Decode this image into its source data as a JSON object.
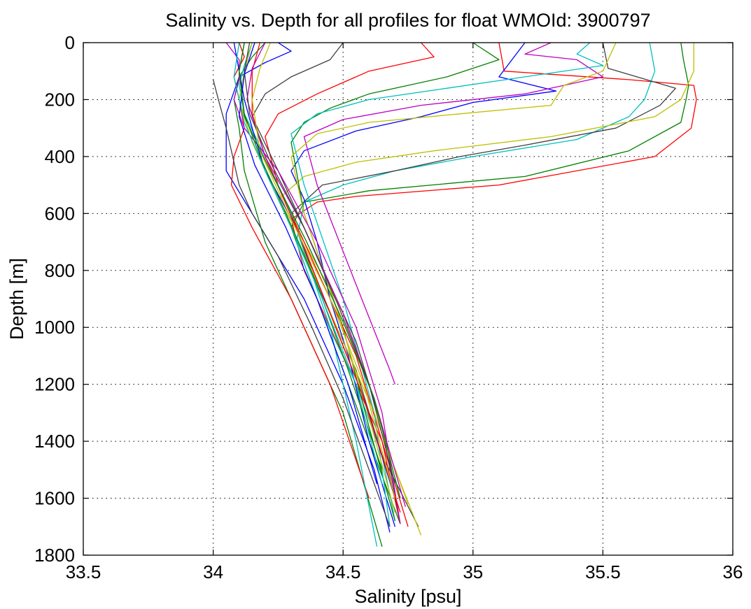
{
  "chart_data": {
    "type": "line",
    "title": "Salinity vs. Depth for all profiles for float WMOId: 3900797",
    "xlabel": "Salinity [psu]",
    "ylabel": "Depth [m]",
    "xlim": [
      33.5,
      36
    ],
    "ylim": [
      0,
      1800
    ],
    "y_reversed": true,
    "grid": true,
    "x_ticks": [
      "33.5",
      "34",
      "34.5",
      "35",
      "35.5",
      "36"
    ],
    "y_ticks": [
      "0",
      "200",
      "400",
      "600",
      "800",
      "1000",
      "1200",
      "1400",
      "1600",
      "1800"
    ],
    "colors": [
      "#0000ff",
      "#008000",
      "#ff0000",
      "#00bfbf",
      "#bf00bf",
      "#bfbf00",
      "#404040"
    ],
    "series": [
      {
        "color": "#ff0000",
        "x": [
          35.1,
          35.12,
          35.6,
          35.85,
          35.86,
          35.84,
          35.7,
          35.1,
          34.55,
          34.4,
          34.3,
          34.35,
          34.45,
          34.55,
          34.65,
          34.75
        ],
        "y": [
          0,
          100,
          130,
          150,
          200,
          300,
          400,
          500,
          540,
          560,
          620,
          800,
          1000,
          1200,
          1400,
          1700
        ]
      },
      {
        "color": "#008000",
        "x": [
          35.8,
          35.81,
          35.83,
          35.82,
          35.8,
          35.6,
          35.2,
          34.6,
          34.35,
          34.3,
          34.4,
          34.5,
          34.6,
          34.72
        ],
        "y": [
          0,
          60,
          150,
          200,
          280,
          380,
          470,
          520,
          560,
          650,
          900,
          1150,
          1400,
          1690
        ]
      },
      {
        "color": "#00bfbf",
        "x": [
          35.68,
          35.7,
          35.66,
          35.6,
          35.4,
          35.0,
          34.7,
          34.5,
          34.35,
          34.32,
          34.42,
          34.55,
          34.65,
          34.7
        ],
        "y": [
          0,
          100,
          200,
          260,
          340,
          400,
          450,
          500,
          560,
          700,
          950,
          1200,
          1450,
          1680
        ]
      },
      {
        "color": "#404040",
        "x": [
          35.5,
          35.52,
          35.78,
          35.72,
          35.55,
          35.2,
          34.95,
          34.7,
          34.42,
          34.3,
          34.4,
          34.55,
          34.65,
          34.79
        ],
        "y": [
          0,
          90,
          160,
          220,
          300,
          360,
          400,
          450,
          500,
          600,
          850,
          1150,
          1450,
          1700
        ]
      },
      {
        "color": "#bfbf00",
        "x": [
          35.85,
          35.85,
          35.8,
          35.7,
          35.3,
          34.85,
          34.55,
          34.35,
          34.25,
          34.35,
          34.5,
          34.6,
          34.68,
          34.8
        ],
        "y": [
          0,
          100,
          200,
          260,
          330,
          380,
          420,
          470,
          550,
          700,
          950,
          1200,
          1450,
          1730
        ]
      },
      {
        "color": "#0000ff",
        "x": [
          35.2,
          35.1,
          35.32,
          35.0,
          34.8,
          34.55,
          34.35,
          34.3,
          34.35,
          34.4,
          34.45,
          34.52,
          34.6,
          34.7
        ],
        "y": [
          0,
          120,
          170,
          210,
          260,
          310,
          380,
          450,
          550,
          700,
          900,
          1100,
          1400,
          1700
        ]
      },
      {
        "color": "#bf00bf",
        "x": [
          35.3,
          35.2,
          35.4,
          35.5,
          35.2,
          34.8,
          34.5,
          34.35,
          34.4,
          34.55,
          34.68,
          34.7
        ],
        "y": [
          0,
          40,
          60,
          120,
          180,
          220,
          270,
          330,
          500,
          850,
          1150,
          1200
        ]
      },
      {
        "color": "#008000",
        "x": [
          35.0,
          35.1,
          34.9,
          34.6,
          34.45,
          34.35,
          34.3,
          34.35,
          34.5,
          34.6,
          34.7
        ],
        "y": [
          0,
          60,
          120,
          180,
          230,
          280,
          350,
          600,
          1000,
          1350,
          1680
        ]
      },
      {
        "color": "#ff0000",
        "x": [
          34.8,
          34.85,
          34.6,
          34.4,
          34.25,
          34.2,
          34.25,
          34.4,
          34.55,
          34.65,
          34.72
        ],
        "y": [
          0,
          50,
          100,
          180,
          250,
          330,
          500,
          800,
          1100,
          1400,
          1690
        ]
      },
      {
        "color": "#00bfbf",
        "x": [
          35.45,
          35.4,
          35.5,
          35.2,
          34.9,
          34.6,
          34.4,
          34.3,
          34.35,
          34.5,
          34.62,
          34.68
        ],
        "y": [
          0,
          40,
          80,
          120,
          160,
          200,
          250,
          320,
          500,
          900,
          1300,
          1700
        ]
      },
      {
        "color": "#404040",
        "x": [
          34.5,
          34.45,
          34.3,
          34.2,
          34.15,
          34.25,
          34.4,
          34.55,
          34.65,
          34.72
        ],
        "y": [
          0,
          60,
          120,
          180,
          260,
          450,
          750,
          1050,
          1350,
          1690
        ]
      },
      {
        "color": "#bfbf00",
        "x": [
          35.55,
          35.5,
          35.35,
          35.3,
          34.95,
          34.6,
          34.4,
          34.3,
          34.35,
          34.48,
          34.58,
          34.7
        ],
        "y": [
          0,
          100,
          150,
          220,
          250,
          280,
          320,
          400,
          600,
          950,
          1250,
          1650
        ]
      },
      {
        "color": "#0000ff",
        "x": [
          34.25,
          34.3,
          34.2,
          34.1,
          34.05,
          34.05,
          34.15,
          34.35,
          34.5,
          34.62,
          34.68
        ],
        "y": [
          0,
          30,
          70,
          120,
          250,
          450,
          600,
          900,
          1200,
          1500,
          1720
        ]
      },
      {
        "color": "#008000",
        "x": [
          34.2,
          34.15,
          34.1,
          34.08,
          34.1,
          34.12,
          34.2,
          34.35,
          34.5,
          34.65
        ],
        "y": [
          0,
          50,
          120,
          200,
          300,
          450,
          700,
          1000,
          1300,
          1770
        ]
      },
      {
        "color": "#ff0000",
        "x": [
          34.1,
          34.12,
          34.08,
          34.1,
          34.12,
          34.08,
          34.07,
          34.15,
          34.3,
          34.45,
          34.6
        ],
        "y": [
          0,
          50,
          120,
          200,
          300,
          400,
          500,
          650,
          900,
          1200,
          1600
        ]
      },
      {
        "color": "#00bfbf",
        "x": [
          34.15,
          34.12,
          34.1,
          34.12,
          34.2,
          34.3,
          34.45,
          34.55,
          34.63
        ],
        "y": [
          0,
          80,
          150,
          250,
          400,
          600,
          1000,
          1400,
          1770
        ]
      },
      {
        "color": "#bf00bf",
        "x": [
          34.05,
          34.1,
          34.1,
          34.08,
          34.12,
          34.25,
          34.4,
          34.55,
          34.65,
          34.72
        ],
        "y": [
          0,
          60,
          130,
          200,
          300,
          450,
          700,
          1000,
          1300,
          1690
        ]
      },
      {
        "color": "#404040",
        "x": [
          34.0,
          34.02,
          34.05,
          34.07,
          34.1,
          34.15,
          34.25,
          34.38,
          34.5,
          34.6,
          34.68
        ],
        "y": [
          130,
          200,
          300,
          380,
          500,
          600,
          750,
          1000,
          1250,
          1500,
          1700
        ]
      },
      {
        "color": "#bfbf00",
        "x": [
          34.15,
          34.12,
          34.1,
          34.15,
          34.25,
          34.38,
          34.5,
          34.62,
          34.75
        ],
        "y": [
          0,
          100,
          200,
          350,
          550,
          800,
          1050,
          1300,
          1620
        ]
      },
      {
        "color": "#0000ff",
        "x": [
          34.08,
          34.1,
          34.12,
          34.15,
          34.2,
          34.32,
          34.45,
          34.58,
          34.7
        ],
        "y": [
          0,
          100,
          200,
          300,
          450,
          650,
          950,
          1250,
          1600
        ]
      },
      {
        "color": "#008000",
        "x": [
          34.12,
          34.1,
          34.12,
          34.18,
          34.28,
          34.4,
          34.52,
          34.65
        ],
        "y": [
          0,
          100,
          250,
          400,
          600,
          850,
          1150,
          1500
        ]
      },
      {
        "color": "#ff0000",
        "x": [
          34.18,
          34.15,
          34.15,
          34.2,
          34.32,
          34.45,
          34.58,
          34.72
        ],
        "y": [
          0,
          100,
          250,
          400,
          650,
          950,
          1250,
          1650
        ]
      },
      {
        "color": "#bf00bf",
        "x": [
          34.2,
          34.15,
          34.13,
          34.2,
          34.35,
          34.5,
          34.62,
          34.74
        ],
        "y": [
          0,
          90,
          200,
          400,
          650,
          950,
          1250,
          1630
        ]
      },
      {
        "color": "#00bfbf",
        "x": [
          34.1,
          34.08,
          34.12,
          34.2,
          34.3,
          34.42,
          34.55,
          34.65
        ],
        "y": [
          0,
          120,
          280,
          450,
          650,
          900,
          1200,
          1550
        ]
      },
      {
        "color": "#404040",
        "x": [
          34.14,
          34.12,
          34.14,
          34.22,
          34.35,
          34.48,
          34.6,
          34.7
        ],
        "y": [
          0,
          100,
          250,
          420,
          650,
          920,
          1200,
          1550
        ]
      },
      {
        "color": "#bfbf00",
        "x": [
          34.22,
          34.18,
          34.15,
          34.18,
          34.3,
          34.45,
          34.58,
          34.7
        ],
        "y": [
          0,
          90,
          200,
          380,
          620,
          900,
          1200,
          1600
        ]
      },
      {
        "color": "#0000ff",
        "x": [
          34.16,
          34.12,
          34.1,
          34.16,
          34.28,
          34.4,
          34.52,
          34.63
        ],
        "y": [
          0,
          110,
          260,
          430,
          650,
          900,
          1200,
          1550
        ]
      },
      {
        "color": "#008000",
        "x": [
          34.12,
          34.1,
          34.12,
          34.22,
          34.36,
          34.5,
          34.62,
          34.72
        ],
        "y": [
          0,
          100,
          260,
          450,
          700,
          980,
          1250,
          1600
        ]
      }
    ]
  }
}
